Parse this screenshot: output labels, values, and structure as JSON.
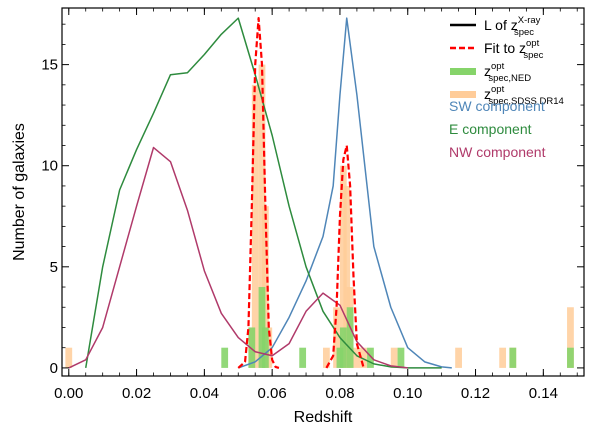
{
  "chart_data": {
    "type": "line",
    "xlabel": "Redshift",
    "ylabel": "Number of galaxies",
    "xlim": [
      -0.002,
      0.152
    ],
    "ylim": [
      -0.4,
      17.8
    ],
    "x_ticks": [
      0.0,
      0.02,
      0.04,
      0.06,
      0.08,
      0.1,
      0.12,
      0.14
    ],
    "x_tick_labels": [
      "0.00",
      "0.02",
      "0.04",
      "0.06",
      "0.08",
      "0.10",
      "0.12",
      "0.14"
    ],
    "y_ticks": [
      0,
      5,
      10,
      15
    ],
    "y_tick_labels": [
      "0",
      "5",
      "10",
      "15"
    ],
    "grid": false,
    "legend_position": "top-right",
    "legend": [
      {
        "key": "lxray",
        "style": "solid-line",
        "color": "#000000",
        "prefix": "L of z",
        "sup": "X-ray",
        "sub": "spec"
      },
      {
        "key": "fit",
        "style": "dashed-line",
        "color": "#ff0000",
        "prefix": "Fit to z",
        "sup": "opt",
        "sub": "spec"
      },
      {
        "key": "ned",
        "style": "patch",
        "color": "#86d46a",
        "prefix": "z",
        "sup": "opt",
        "sub": "spec,NED"
      },
      {
        "key": "sdss",
        "style": "patch",
        "color": "#ffcc99",
        "prefix": "z",
        "sup": "opt",
        "sub": "spec,SDSS DR14"
      }
    ],
    "component_labels": [
      {
        "text": "SW component",
        "color": "#4f86b8"
      },
      {
        "text": "E component",
        "color": "#2e8b3e"
      },
      {
        "text": "NW component",
        "color": "#b03a6a"
      }
    ],
    "bin_width": 0.002,
    "histograms": [
      {
        "name": "z_spec,SDSS DR14",
        "color": "#ffcc99",
        "bins": [
          [
            0.0,
            1
          ],
          [
            0.054,
            2
          ],
          [
            0.055,
            14
          ],
          [
            0.057,
            15
          ],
          [
            0.058,
            8
          ],
          [
            0.059,
            2
          ],
          [
            0.076,
            1
          ],
          [
            0.079,
            3
          ],
          [
            0.081,
            10
          ],
          [
            0.082,
            9
          ],
          [
            0.083,
            4
          ],
          [
            0.085,
            1
          ],
          [
            0.087,
            1
          ],
          [
            0.096,
            1
          ],
          [
            0.115,
            1
          ],
          [
            0.128,
            1
          ],
          [
            0.131,
            1
          ],
          [
            0.148,
            3
          ]
        ]
      },
      {
        "name": "z_spec,NED",
        "color": "#86d46a",
        "bins": [
          [
            0.046,
            1
          ],
          [
            0.054,
            2
          ],
          [
            0.057,
            4
          ],
          [
            0.058,
            2
          ],
          [
            0.069,
            1
          ],
          [
            0.08,
            1
          ],
          [
            0.081,
            2
          ],
          [
            0.083,
            3
          ],
          [
            0.089,
            1
          ],
          [
            0.098,
            1
          ],
          [
            0.131,
            1
          ],
          [
            0.148,
            1
          ]
        ]
      }
    ],
    "series": [
      {
        "name": "SW component",
        "color": "#4f86b8",
        "style": "solid",
        "x": [
          0.05,
          0.055,
          0.06,
          0.065,
          0.07,
          0.075,
          0.078,
          0.08,
          0.082,
          0.085,
          0.088,
          0.09,
          0.095,
          0.1,
          0.105,
          0.11,
          0.113
        ],
        "y": [
          0.0,
          0.3,
          1.0,
          2.5,
          4.3,
          6.5,
          9.0,
          13.5,
          17.3,
          13.5,
          9.0,
          6.0,
          3.0,
          1.0,
          0.3,
          0.05,
          0.0
        ]
      },
      {
        "name": "E component",
        "color": "#2e8b3e",
        "style": "solid",
        "x": [
          0.005,
          0.01,
          0.015,
          0.02,
          0.025,
          0.03,
          0.035,
          0.04,
          0.045,
          0.05,
          0.055,
          0.06,
          0.065,
          0.07,
          0.075,
          0.08,
          0.085,
          0.09,
          0.095,
          0.1,
          0.105,
          0.11
        ],
        "y": [
          0.0,
          5.0,
          8.8,
          10.8,
          12.6,
          14.5,
          14.6,
          15.5,
          16.5,
          17.3,
          14.5,
          11.5,
          8.0,
          5.0,
          2.8,
          1.5,
          0.6,
          0.2,
          0.05,
          0.0,
          0.0,
          0.0
        ]
      },
      {
        "name": "NW component",
        "color": "#b03a6a",
        "style": "solid",
        "x": [
          0.0,
          0.005,
          0.01,
          0.015,
          0.02,
          0.025,
          0.03,
          0.035,
          0.04,
          0.045,
          0.05,
          0.055,
          0.06,
          0.065,
          0.07,
          0.075,
          0.08,
          0.085,
          0.09,
          0.095,
          0.1
        ],
        "y": [
          0.0,
          0.4,
          2.0,
          5.0,
          8.0,
          10.9,
          10.2,
          7.8,
          4.8,
          2.7,
          1.5,
          0.8,
          0.6,
          1.2,
          2.8,
          3.7,
          3.1,
          1.3,
          0.4,
          0.1,
          0.0
        ]
      },
      {
        "name": "Fit to z_spec (component 1)",
        "color": "#ff0000",
        "style": "dashed",
        "x": [
          0.05,
          0.052,
          0.053,
          0.054,
          0.055,
          0.056,
          0.057,
          0.058,
          0.059,
          0.06,
          0.061,
          0.062
        ],
        "y": [
          0.0,
          0.3,
          2.0,
          8.0,
          15.0,
          17.3,
          15.0,
          8.0,
          2.0,
          0.4,
          0.05,
          0.0
        ]
      },
      {
        "name": "Fit to z_spec (component 2)",
        "color": "#ff0000",
        "style": "dashed",
        "x": [
          0.076,
          0.078,
          0.079,
          0.08,
          0.081,
          0.082,
          0.083,
          0.084,
          0.085,
          0.087
        ],
        "y": [
          0.0,
          0.6,
          3.0,
          7.5,
          10.3,
          11.0,
          9.0,
          4.5,
          1.2,
          0.0
        ]
      }
    ]
  }
}
